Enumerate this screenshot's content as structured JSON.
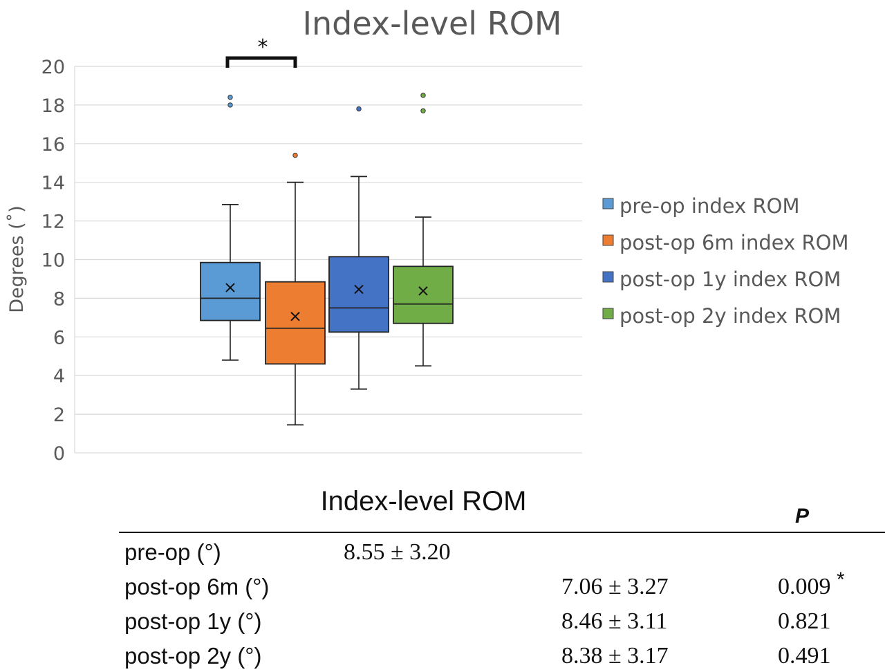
{
  "chart_data": {
    "type": "box",
    "title": "Index-level ROM",
    "ylabel": "Degrees (˚)",
    "ylim": [
      0,
      20
    ],
    "yticks": [
      0,
      2,
      4,
      6,
      8,
      10,
      12,
      14,
      16,
      18,
      20
    ],
    "grid": true,
    "legend_position": "right",
    "series": [
      {
        "name": "pre-op index ROM",
        "color": "#5b9bd5",
        "min": 4.8,
        "q1": 6.85,
        "median": 8.0,
        "q3": 9.85,
        "max": 12.85,
        "mean": 8.55,
        "outliers": [
          18.0,
          18.4
        ]
      },
      {
        "name": "post-op 6m index ROM",
        "color": "#ed7d31",
        "min": 1.45,
        "q1": 4.6,
        "median": 6.45,
        "q3": 8.85,
        "max": 14.0,
        "mean": 7.06,
        "outliers": [
          15.4
        ]
      },
      {
        "name": "post-op 1y index ROM",
        "color": "#4472c4",
        "min": 3.3,
        "q1": 6.25,
        "median": 7.5,
        "q3": 10.15,
        "max": 14.3,
        "mean": 8.46,
        "outliers": [
          17.8
        ]
      },
      {
        "name": "post-op 2y index ROM",
        "color": "#70ad47",
        "min": 4.5,
        "q1": 6.7,
        "median": 7.7,
        "q3": 9.65,
        "max": 12.2,
        "mean": 8.38,
        "outliers": [
          17.7,
          18.5
        ]
      }
    ],
    "significance": {
      "from": 0,
      "to": 1,
      "label": "*"
    }
  },
  "table": {
    "title": "Index-level ROM",
    "p_header": "P",
    "rows": [
      {
        "label": "pre-op  (°)",
        "value": "8.55 ± 3.20",
        "p": ""
      },
      {
        "label": "post-op 6m (°)",
        "value": "7.06 ± 3.27",
        "p": "0.009",
        "sig": "*"
      },
      {
        "label": "post-op 1y  (°)",
        "value": "8.46 ± 3.11",
        "p": "0.821"
      },
      {
        "label": "post-op 2y  (°)",
        "value": "8.38 ± 3.17",
        "p": "0.491"
      }
    ]
  }
}
